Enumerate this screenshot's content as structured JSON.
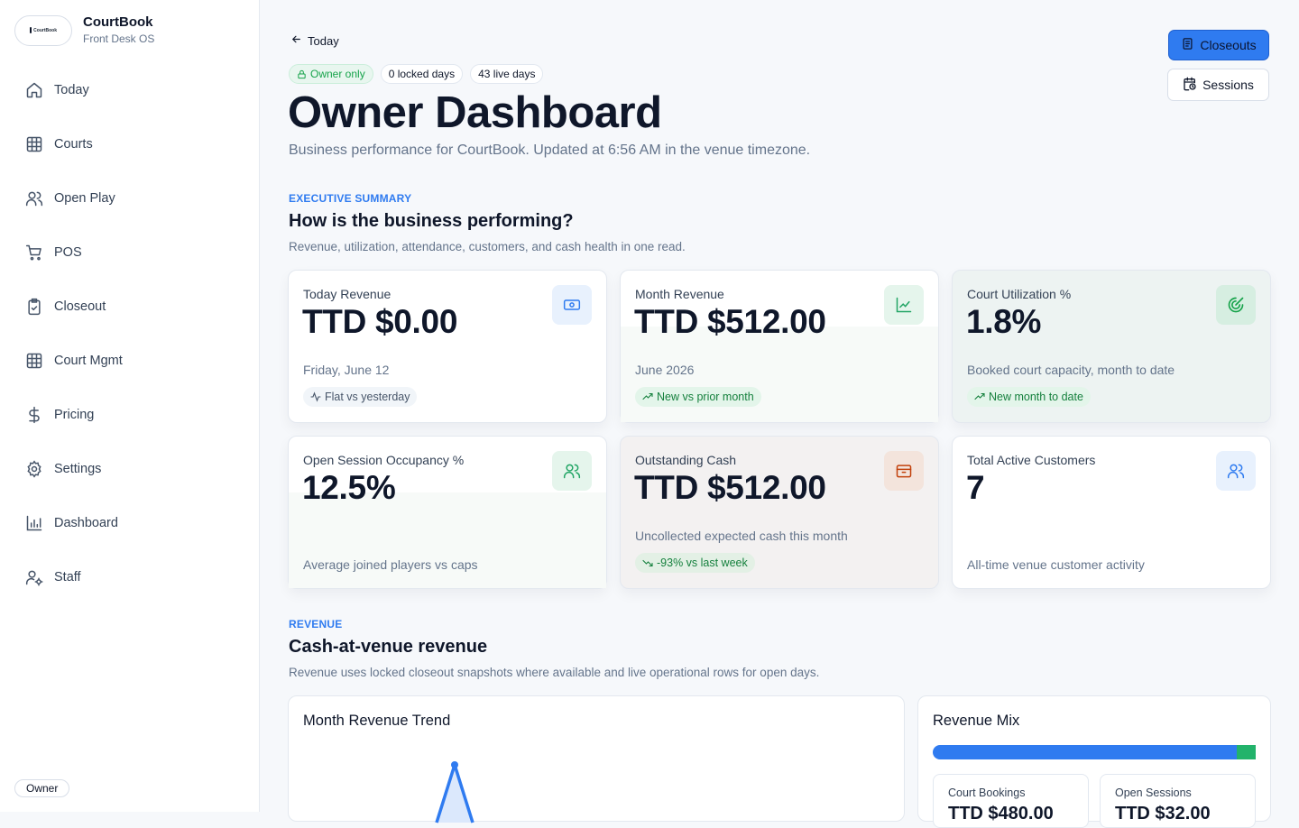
{
  "brand": {
    "logo_text": "CourtBook",
    "name": "CourtBook",
    "subtitle": "Front Desk OS"
  },
  "sidebar": {
    "items": [
      {
        "label": "Today",
        "icon": "home-icon"
      },
      {
        "label": "Courts",
        "icon": "grid-icon"
      },
      {
        "label": "Open Play",
        "icon": "users-icon"
      },
      {
        "label": "POS",
        "icon": "cart-icon"
      },
      {
        "label": "Closeout",
        "icon": "clipboard-check-icon"
      },
      {
        "label": "Court Mgmt",
        "icon": "grid-icon"
      },
      {
        "label": "Pricing",
        "icon": "dollar-icon"
      },
      {
        "label": "Settings",
        "icon": "gear-icon"
      },
      {
        "label": "Dashboard",
        "icon": "bar-chart-icon"
      },
      {
        "label": "Staff",
        "icon": "user-cog-icon"
      }
    ],
    "role": "Owner"
  },
  "header": {
    "back_label": "Today",
    "pills": {
      "owner": "Owner only",
      "locked": "0 locked days",
      "live": "43 live days"
    },
    "title": "Owner Dashboard",
    "subtitle": "Business performance for CourtBook. Updated at 6:56 AM in the venue timezone.",
    "closeouts_button": "Closeouts",
    "sessions_button": "Sessions"
  },
  "summary": {
    "eyebrow": "EXECUTIVE SUMMARY",
    "title": "How is the business performing?",
    "subtitle": "Revenue, utilization, attendance, customers, and cash health in one read.",
    "cards": [
      {
        "label": "Today Revenue",
        "value": "TTD $0.00",
        "sub": "Friday, June 12",
        "trend": "Flat vs yesterday",
        "icon": "cash-icon"
      },
      {
        "label": "Month Revenue",
        "value": "TTD $512.00",
        "sub": "June 2026",
        "trend": "New vs prior month",
        "icon": "line-chart-icon"
      },
      {
        "label": "Court Utilization %",
        "value": "1.8%",
        "sub": "Booked court capacity, month to date",
        "trend": "New month to date",
        "icon": "target-icon"
      },
      {
        "label": "Open Session Occupancy %",
        "value": "12.5%",
        "sub": "Average joined players vs caps",
        "icon": "users-icon"
      },
      {
        "label": "Outstanding Cash",
        "value": "TTD $512.00",
        "sub": "Uncollected expected cash this month",
        "trend": "-93% vs last week",
        "icon": "wallet-icon"
      },
      {
        "label": "Total Active Customers",
        "value": "7",
        "sub": "All-time venue customer activity",
        "icon": "users-icon"
      }
    ]
  },
  "revenue": {
    "eyebrow": "REVENUE",
    "title": "Cash-at-venue revenue",
    "subtitle": "Revenue uses locked closeout snapshots where available and live operational rows for open days.",
    "trend_title": "Month Revenue Trend",
    "mix_title": "Revenue Mix",
    "mix": {
      "court_bookings_label": "Court Bookings",
      "court_bookings_value": "TTD $480.00",
      "open_sessions_label": "Open Sessions",
      "open_sessions_value": "TTD $32.00",
      "open_sessions_share": 0.06
    }
  },
  "colors": {
    "accent": "#2f7bf0",
    "success": "#22b36b",
    "muted": "#64748b"
  }
}
